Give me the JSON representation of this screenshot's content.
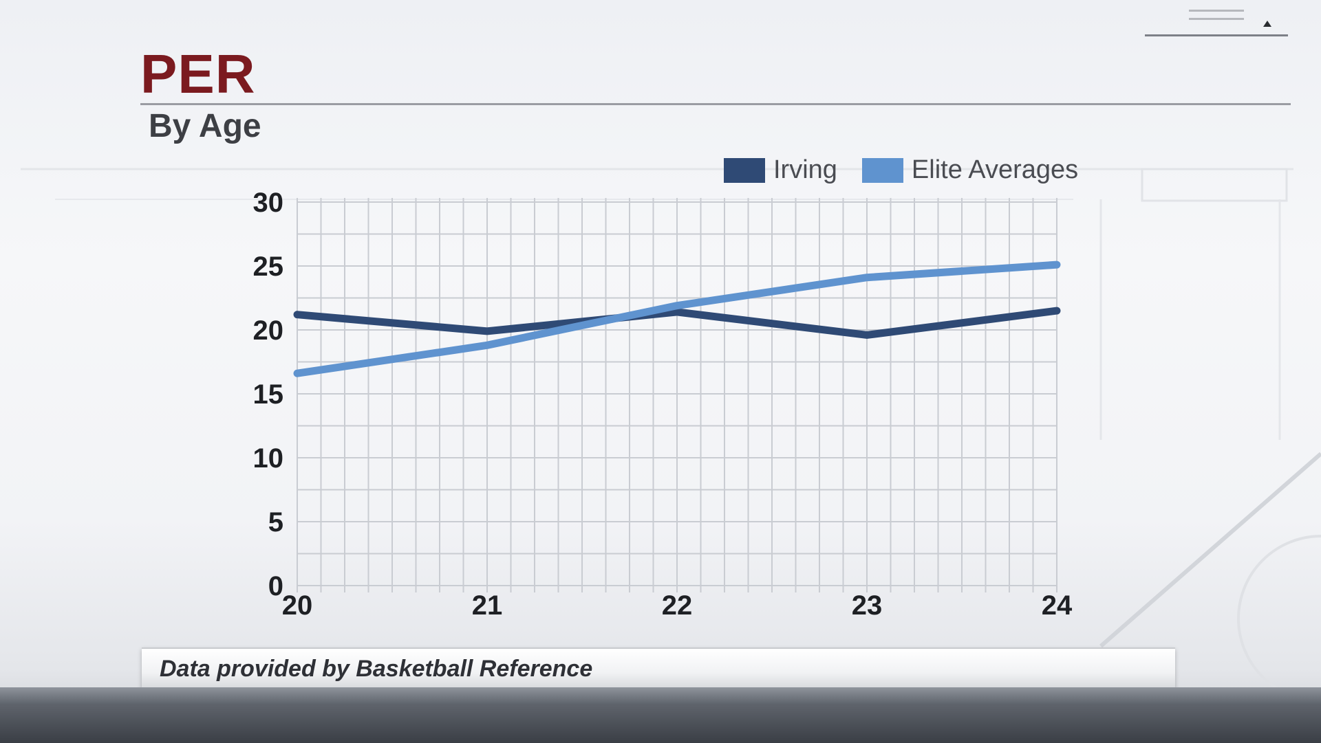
{
  "header": {
    "title": "PER",
    "subtitle": "By Age"
  },
  "legend": [
    {
      "label": "Irving",
      "color": "#2f4a75"
    },
    {
      "label": "Elite Averages",
      "color": "#5f93cf"
    }
  ],
  "footer": {
    "source_text": "Data provided by Basketball Reference"
  },
  "colors": {
    "title": "#7b1a1f",
    "irving": "#2f4a75",
    "elite": "#5f93cf"
  },
  "chart_data": {
    "type": "line",
    "title": "PER",
    "subtitle": "By Age",
    "x": [
      20,
      21,
      22,
      23,
      24
    ],
    "series": [
      {
        "name": "Irving",
        "values": [
          21.2,
          19.9,
          21.4,
          19.6,
          21.5
        ],
        "color": "#2f4a75"
      },
      {
        "name": "Elite Averages",
        "values": [
          16.6,
          18.8,
          21.9,
          24.1,
          25.1
        ],
        "color": "#5f93cf"
      }
    ],
    "yticks": [
      0,
      5,
      10,
      15,
      20,
      25,
      30
    ],
    "xticks": [
      20,
      21,
      22,
      23,
      24
    ],
    "ylim": [
      0,
      30
    ],
    "xlim": [
      20,
      24
    ],
    "grid": true,
    "legend_position": "top-right"
  }
}
